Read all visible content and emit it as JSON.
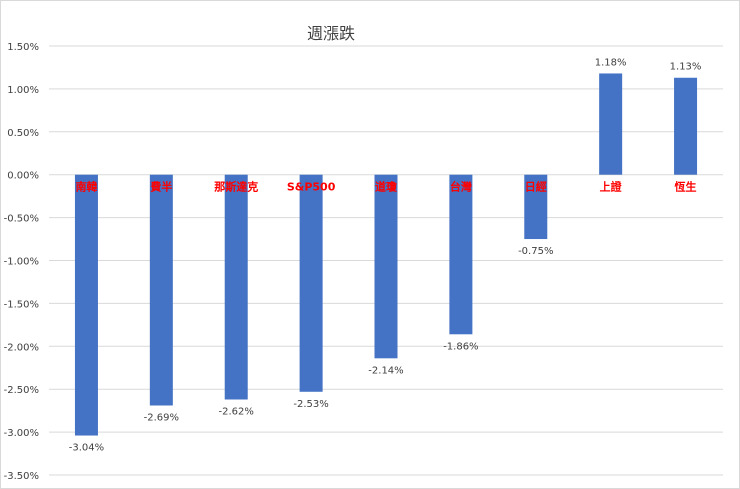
{
  "chart_data": {
    "type": "bar",
    "title": "週漲跌",
    "categories": [
      "南韓",
      "費半",
      "那斯達克",
      "S&P500",
      "道瓊",
      "台灣",
      "日經",
      "上證",
      "恆生"
    ],
    "values": [
      -3.04,
      -2.69,
      -2.62,
      -2.53,
      -2.14,
      -1.86,
      -0.75,
      1.18,
      1.13
    ],
    "value_labels": [
      "-3.04%",
      "-2.69%",
      "-2.62%",
      "-2.53%",
      "-2.14%",
      "-1.86%",
      "-0.75%",
      "1.18%",
      "1.13%"
    ],
    "ylim": [
      -3.5,
      1.5
    ],
    "yticks": [
      1.5,
      1.0,
      0.5,
      0.0,
      -0.5,
      -1.0,
      -1.5,
      -2.0,
      -2.5,
      -3.0,
      -3.5
    ],
    "ytick_labels": [
      "1.50%",
      "1.00%",
      "0.50%",
      "0.00%",
      "-0.50%",
      "-1.00%",
      "-1.50%",
      "-2.00%",
      "-2.50%",
      "-3.00%",
      "-3.50%"
    ],
    "xlabel": "",
    "ylabel": "",
    "grid": true,
    "legend": "none",
    "colors": {
      "bar": "#4472C4",
      "category_label": "#FF0000",
      "grid": "#D9D9D9",
      "text": "#404040"
    }
  }
}
